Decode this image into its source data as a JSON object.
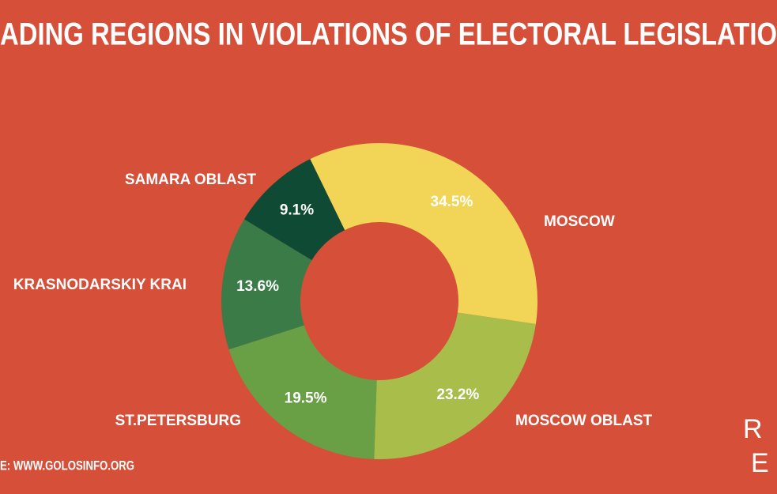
{
  "chart_data": {
    "type": "donut",
    "title": "ADING REGIONS IN VIOLATIONS OF ELECTORAL LEGISLATIO",
    "categories": [
      "MOSCOW",
      "MOSCOW OBLAST",
      "ST.PETERSBURG",
      "KRASNODARSKIY KRAI",
      "SAMARA OBLAST"
    ],
    "values": [
      34.5,
      23.2,
      19.5,
      13.6,
      9.1
    ],
    "value_labels": [
      "34.5%",
      "23.2%",
      "19.5%",
      "13.6%",
      "9.1%"
    ],
    "colors": [
      "#f2d457",
      "#a9bd4b",
      "#69a046",
      "#3a7b47",
      "#0f4b34"
    ],
    "source": "E: WWW.GOLOSINFO.ORG",
    "logo": [
      "R",
      "E"
    ]
  }
}
